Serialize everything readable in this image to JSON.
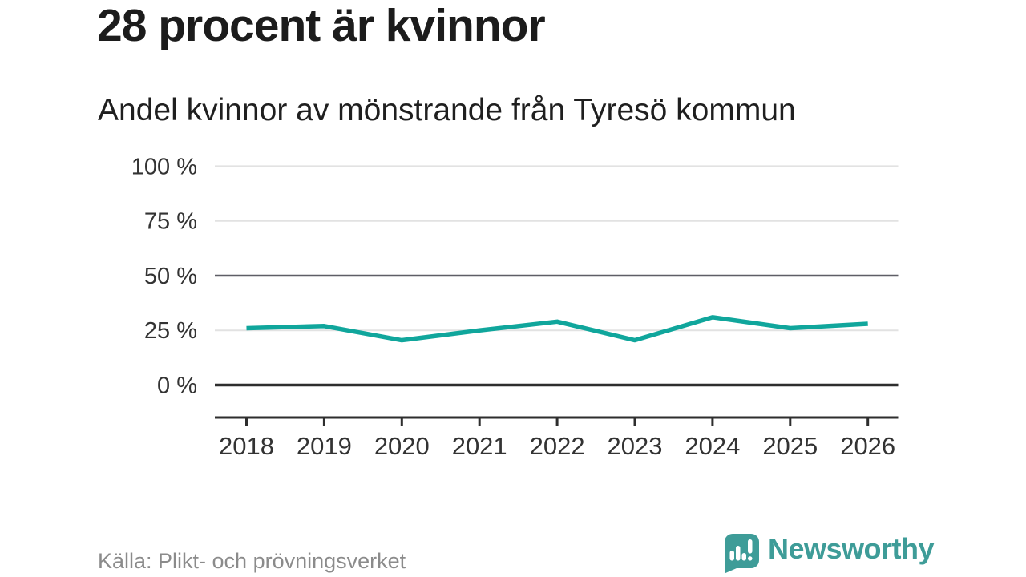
{
  "header": {
    "title": "28 procent är kvinnor",
    "subtitle": "Andel kvinnor av mönstrande från Tyresö kommun"
  },
  "chart_data": {
    "type": "line",
    "title": "28 procent är kvinnor",
    "subtitle": "Andel kvinnor av mönstrande från Tyresö kommun",
    "x": [
      2018,
      2019,
      2020,
      2021,
      2022,
      2023,
      2024,
      2025,
      2026
    ],
    "series": [
      {
        "name": "Andel kvinnor av mönstrande (%)",
        "values": [
          26,
          27,
          20.5,
          25,
          29,
          20.5,
          31,
          26,
          28
        ],
        "color": "#10a69c"
      }
    ],
    "xlabel": "",
    "ylabel": "",
    "ylim": [
      0,
      100
    ],
    "yticks": [
      0,
      25,
      50,
      75,
      100
    ],
    "ytick_labels": [
      "0 %",
      "25 %",
      "50 %",
      "75 %",
      "100 %"
    ],
    "emphasized_gridlines": [
      0,
      50
    ],
    "grid": true,
    "legend_position": "none"
  },
  "footer": {
    "source": "Källa: Plikt- och prövningsverket",
    "brand": "Newsworthy",
    "brand_color": "#3e9c98",
    "brand_icon": "bar-chart-speech-bubble-icon"
  }
}
